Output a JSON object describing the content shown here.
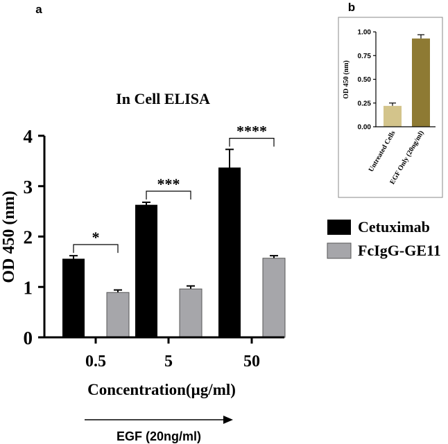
{
  "panels": {
    "a": "a",
    "b": "b"
  },
  "colors": {
    "cetuximab": "#000000",
    "fcigg": "#a6a6aa",
    "untreated": "#d3c48b",
    "egf_only": "#8e7a33"
  },
  "arrow_label": "EGF (20ng/ml)",
  "chart_data": [
    {
      "panel": "a",
      "type": "bar",
      "title": "In Cell ELISA",
      "xlabel": "Concentration(µg/ml)",
      "ylabel": "OD 450 (nm)",
      "ylim": [
        0,
        4
      ],
      "yticks": [
        "0",
        "1",
        "2",
        "3",
        "4"
      ],
      "categories": [
        "0.5",
        "5",
        "50"
      ],
      "series": [
        {
          "name": "Cetuximab",
          "values": [
            1.56,
            2.63,
            3.37
          ],
          "errors": [
            0.06,
            0.05,
            0.36
          ]
        },
        {
          "name": "FcIgG-GE11",
          "values": [
            0.89,
            0.96,
            1.57
          ],
          "errors": [
            0.05,
            0.06,
            0.05
          ]
        }
      ],
      "significance": [
        "*",
        "***",
        "****"
      ],
      "legend": [
        "Cetuximab",
        "FcIgG-GE11"
      ]
    },
    {
      "panel": "b",
      "type": "bar",
      "ylabel": "OD 450 (nm)",
      "ylim": [
        0,
        1
      ],
      "yticks": [
        "0.00",
        "0.25",
        "0.50",
        "0.75",
        "1.00"
      ],
      "categories": [
        "Untreated Cells",
        "EGF Only (20ng/ml)"
      ],
      "values": [
        0.22,
        0.93
      ],
      "errors": [
        0.03,
        0.04
      ]
    }
  ]
}
